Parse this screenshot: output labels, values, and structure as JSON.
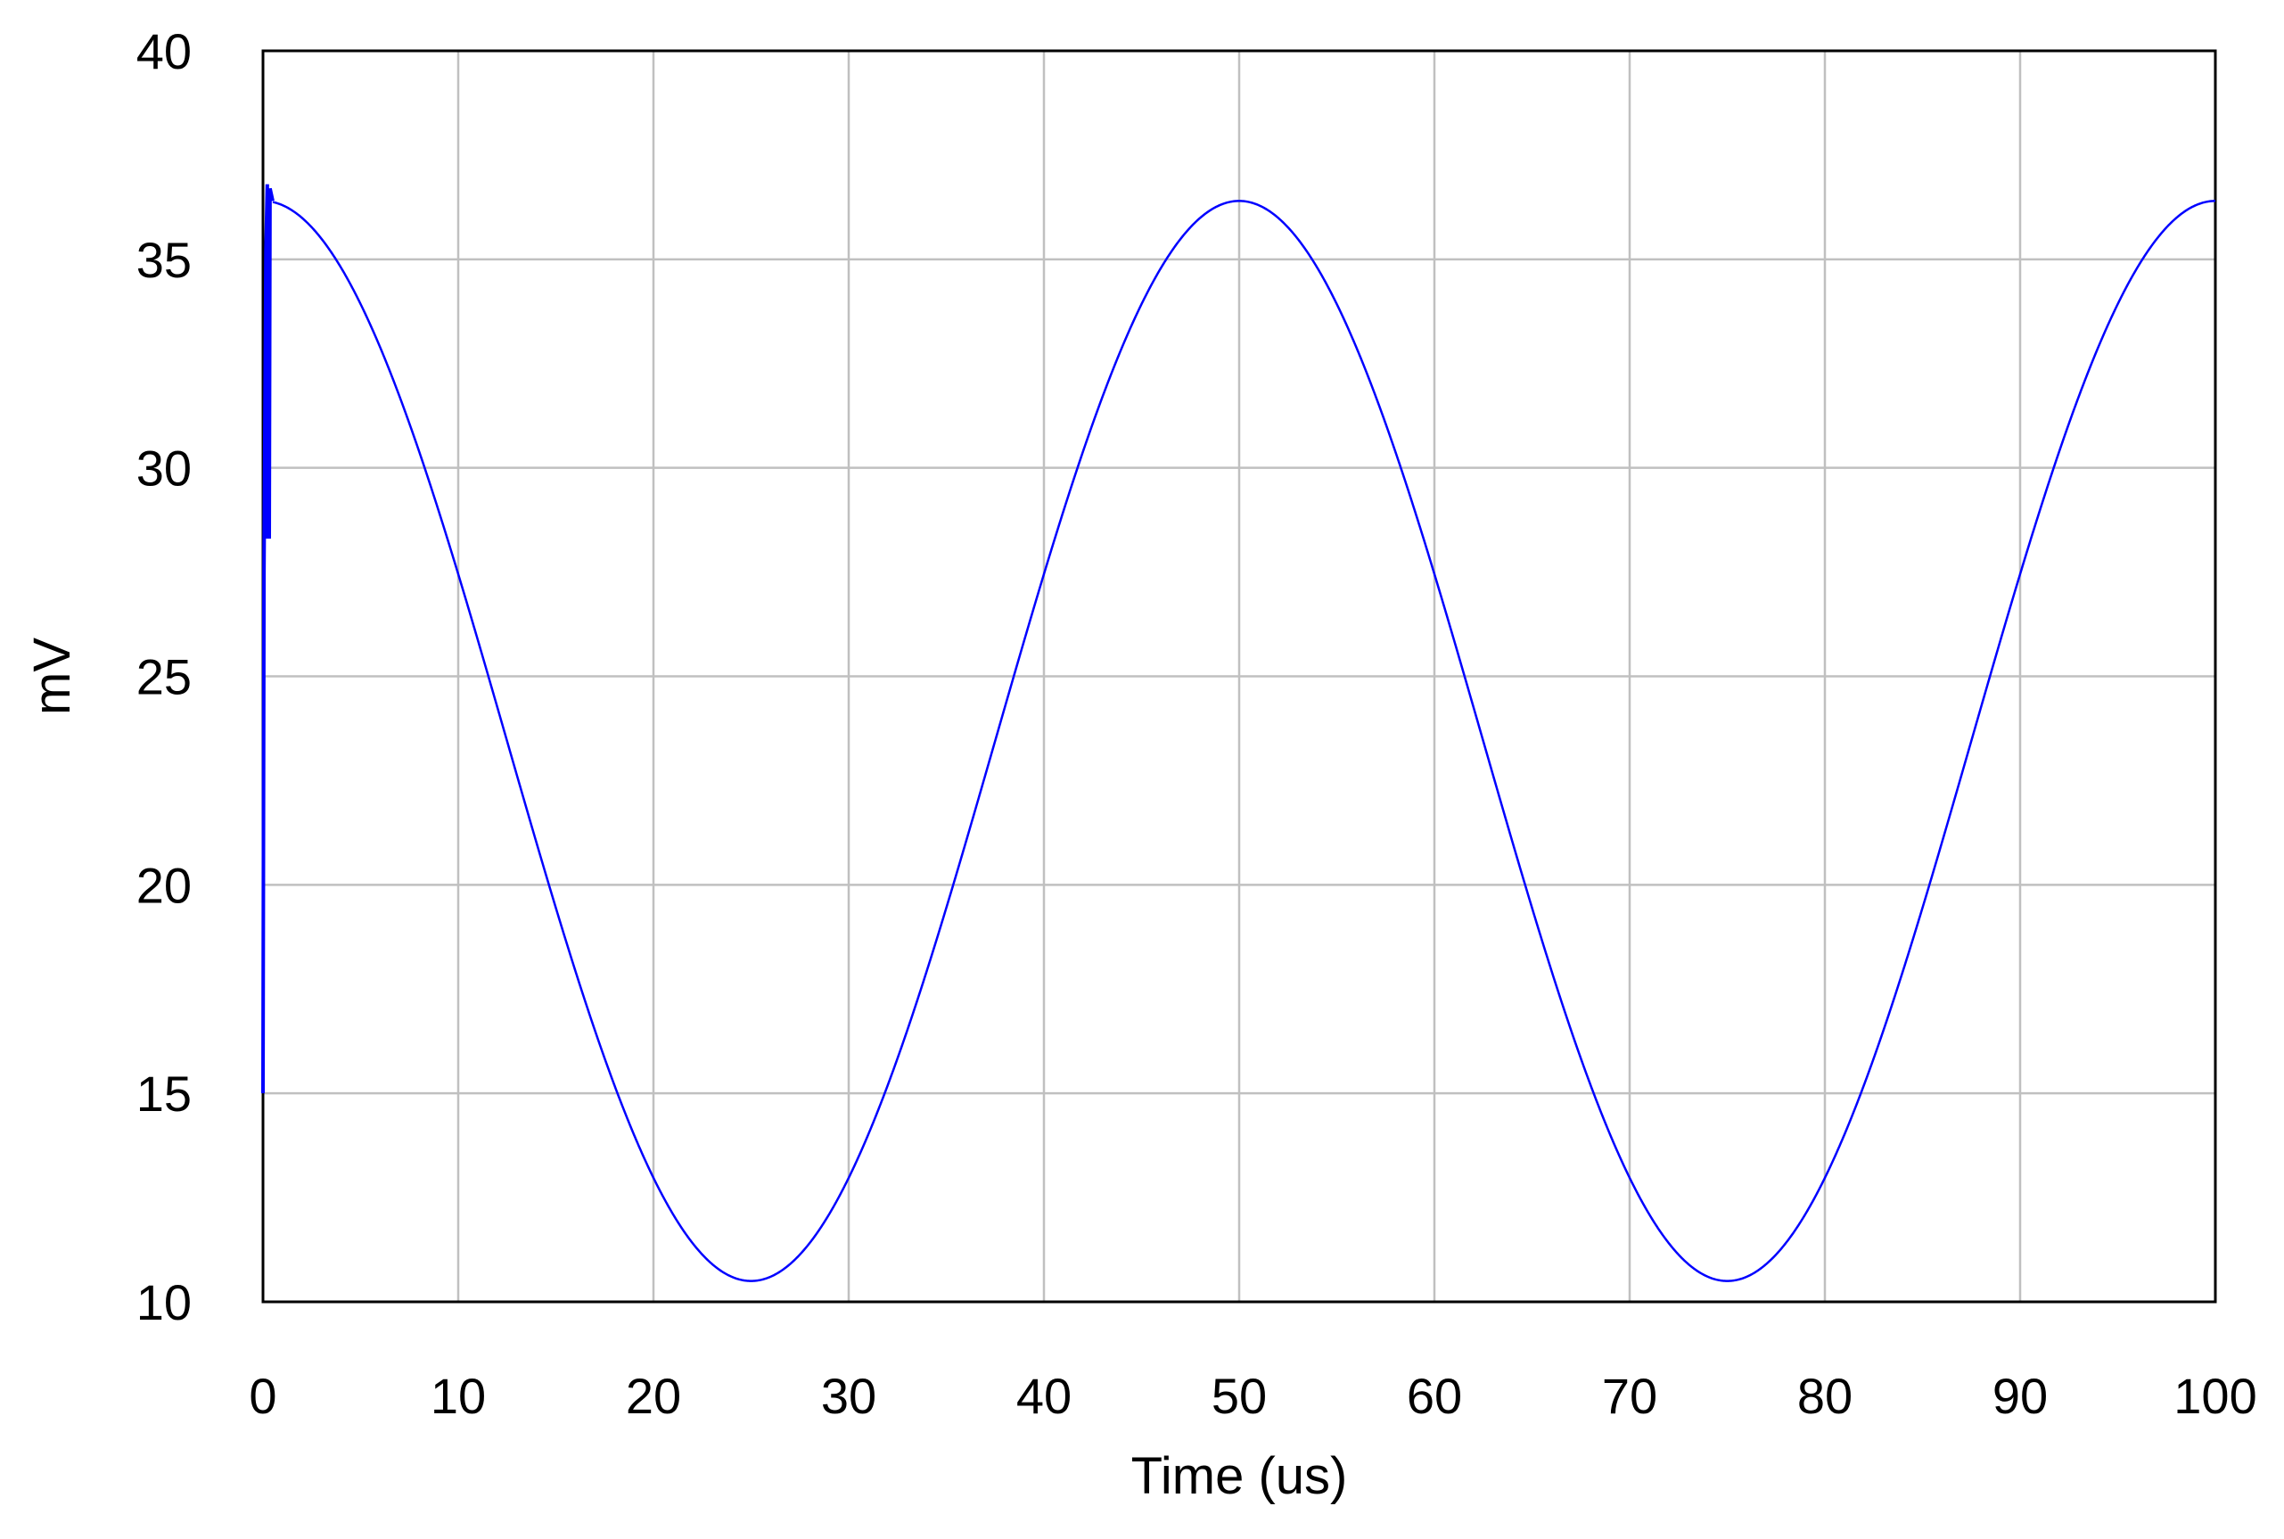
{
  "chart_data": {
    "type": "line",
    "xlabel": "Time (us)",
    "ylabel": "mV",
    "xlim": [
      0,
      100
    ],
    "ylim": [
      10,
      40
    ],
    "x_ticks": [
      0,
      10,
      20,
      30,
      40,
      50,
      60,
      70,
      80,
      90,
      100
    ],
    "y_ticks": [
      10,
      15,
      20,
      25,
      30,
      35,
      40
    ],
    "x_tick_labels": [
      "0",
      "10",
      "20",
      "30",
      "40",
      "50",
      "60",
      "70",
      "80",
      "90",
      "100"
    ],
    "y_tick_labels": [
      "10",
      "15",
      "20",
      "25",
      "30",
      "35",
      "40"
    ],
    "grid": true,
    "legend": "none",
    "colors": {
      "series": "#0000ff",
      "grid": "#c0c0c0",
      "axes": "#000000"
    },
    "series": [
      {
        "color": "#0000ff",
        "initial_transient": [
          {
            "x": 0.0,
            "y": 15.0
          },
          {
            "x": 0.05,
            "y": 27.5
          },
          {
            "x": 0.15,
            "y": 35.2
          },
          {
            "x": 0.22,
            "y": 36.8
          },
          {
            "x": 0.22,
            "y": 28.3
          },
          {
            "x": 0.28,
            "y": 36.7
          },
          {
            "x": 0.32,
            "y": 28.3
          },
          {
            "x": 0.36,
            "y": 36.7
          },
          {
            "x": 0.5,
            "y": 36.4
          }
        ],
        "waveform": {
          "shape": "cosine",
          "x_start": 0.5,
          "x_end": 100,
          "offset": 23.45,
          "amplitude": 12.95,
          "period": 50,
          "phase_x": 0
        },
        "points": [
          {
            "x": 0,
            "y": 36.4
          },
          {
            "x": 5,
            "y": 33.9
          },
          {
            "x": 10,
            "y": 27.4
          },
          {
            "x": 15,
            "y": 19.5
          },
          {
            "x": 20,
            "y": 13.0
          },
          {
            "x": 25,
            "y": 10.5
          },
          {
            "x": 30,
            "y": 13.0
          },
          {
            "x": 35,
            "y": 19.5
          },
          {
            "x": 40,
            "y": 27.4
          },
          {
            "x": 45,
            "y": 33.9
          },
          {
            "x": 50,
            "y": 36.4
          },
          {
            "x": 55,
            "y": 33.9
          },
          {
            "x": 60,
            "y": 27.4
          },
          {
            "x": 65,
            "y": 19.5
          },
          {
            "x": 70,
            "y": 13.0
          },
          {
            "x": 75,
            "y": 10.5
          },
          {
            "x": 80,
            "y": 13.0
          },
          {
            "x": 85,
            "y": 19.5
          },
          {
            "x": 90,
            "y": 27.4
          },
          {
            "x": 95,
            "y": 33.9
          },
          {
            "x": 100,
            "y": 36.4
          }
        ]
      }
    ]
  }
}
